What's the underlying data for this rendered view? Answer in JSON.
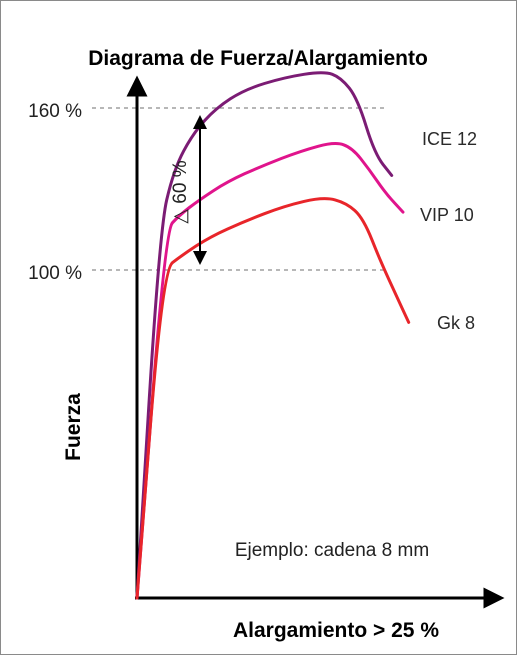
{
  "chart_data": {
    "type": "line",
    "title": "Diagrama de Fuerza/Alargamiento",
    "xlabel": "Alargamiento > 25 %",
    "ylabel": "Fuerza",
    "y_ticks": [
      {
        "value": 160,
        "label": "160 %"
      },
      {
        "value": 100,
        "label": "100 %"
      }
    ],
    "ylim": [
      0,
      175
    ],
    "xlim": [
      0,
      100
    ],
    "grid": false,
    "series": [
      {
        "name": "ICE 12",
        "color": "#7b1c74",
        "points": [
          [
            0,
            0
          ],
          [
            8,
            120
          ],
          [
            13,
            140
          ],
          [
            20,
            152
          ],
          [
            28,
            160
          ],
          [
            38,
            166
          ],
          [
            52,
            170
          ],
          [
            66,
            172
          ],
          [
            72,
            170
          ],
          [
            78,
            163
          ],
          [
            84,
            145
          ],
          [
            90,
            138
          ]
        ]
      },
      {
        "name": "VIP 10",
        "color": "#e0148c",
        "points": [
          [
            0,
            0
          ],
          [
            10,
            120
          ],
          [
            15,
            125
          ],
          [
            22,
            130
          ],
          [
            32,
            136
          ],
          [
            44,
            141
          ],
          [
            58,
            146
          ],
          [
            70,
            149
          ],
          [
            76,
            147
          ],
          [
            82,
            140
          ],
          [
            88,
            132
          ],
          [
            94,
            126
          ]
        ]
      },
      {
        "name": "Gk 8",
        "color": "#e8252a",
        "points": [
          [
            0,
            0
          ],
          [
            9,
            107
          ],
          [
            16,
            112
          ],
          [
            26,
            118
          ],
          [
            38,
            123
          ],
          [
            52,
            128
          ],
          [
            66,
            131
          ],
          [
            74,
            129
          ],
          [
            80,
            124
          ],
          [
            86,
            110
          ],
          [
            92,
            98
          ],
          [
            96,
            90
          ]
        ]
      }
    ],
    "annotations": [
      {
        "text": "△ 60 %",
        "from": 100,
        "to": 160
      },
      {
        "text": "Ejemplo: cadena 8 mm"
      }
    ]
  }
}
